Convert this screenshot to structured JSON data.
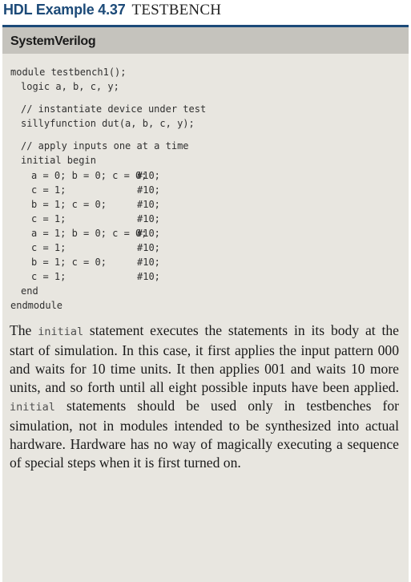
{
  "header": {
    "label": "HDL Example 4.37",
    "title": "TESTBENCH"
  },
  "panel": {
    "language": "SystemVerilog",
    "code": {
      "l1": "module testbench1();",
      "l2": "logic a, b, c, y;",
      "l3": "// instantiate device under test",
      "l4": "sillyfunction dut(a, b, c, y);",
      "l5": "// apply inputs one at a time",
      "l6": "initial begin",
      "l7a": "a = 0; b = 0; c = 0;",
      "l7b": "#10;",
      "l8a": "c = 1;",
      "l8b": "#10;",
      "l9a": "b = 1; c = 0;",
      "l9b": "#10;",
      "l10a": "c = 1;",
      "l10b": "#10;",
      "l11a": "a = 1; b = 0; c = 0;",
      "l11b": "#10;",
      "l12a": "c = 1;",
      "l12b": "#10;",
      "l13a": "b = 1; c = 0;",
      "l13b": "#10;",
      "l14a": "c = 1;",
      "l14b": "#10;",
      "l15": "end",
      "l16": "endmodule"
    },
    "explanation": {
      "p1": "The ",
      "kw1": "initial",
      "p2": " statement executes the statements in its body at the start of simulation. In this case, it first applies the input pattern 000 and waits for 10 time units. It then applies 001 and waits 10 more units, and so forth until all eight possible inputs have been applied. ",
      "kw2": "initial",
      "p3": " statements should be used only in testbenches for simulation, not in modules intended to be synthesized into actual hardware. Hardware has no way of magically executing a sequence of special steps when it is first turned on."
    }
  }
}
